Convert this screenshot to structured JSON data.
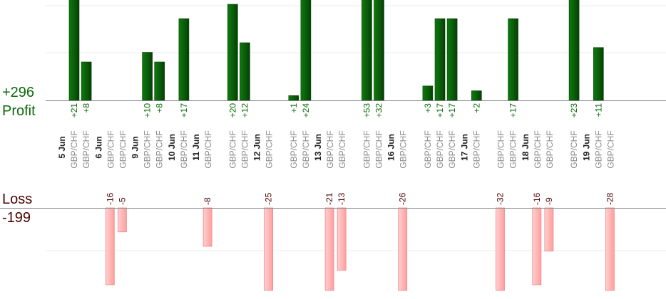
{
  "summary": {
    "profit_total": "+296",
    "profit_label": "Profit",
    "loss_label": "Loss",
    "loss_total": "-199"
  },
  "colors": {
    "profit_bar": "#0a5c0a",
    "profit_text": "#0a6a0a",
    "loss_bar": "#ffb3b3",
    "loss_bar_border": "#ee8a8a",
    "loss_text": "#4a0000",
    "axis": "#888888",
    "grid": "#eeeeee",
    "date_text": "#222222",
    "symbol_text": "#888888"
  },
  "chart_data": {
    "type": "bar",
    "title": "",
    "grid": true,
    "days": [
      {
        "date": "5 Jun",
        "trades": [
          {
            "symbol": "GBP/CHF",
            "value": 21,
            "label": "+21"
          },
          {
            "symbol": "GBP/CHF",
            "value": 8,
            "label": "+8"
          }
        ]
      },
      {
        "date": "6 Jun",
        "trades": [
          {
            "symbol": "GBP/CHF",
            "value": -16,
            "label": "-16"
          },
          {
            "symbol": "GBP/CHF",
            "value": -5,
            "label": "-5"
          }
        ]
      },
      {
        "date": "9 Jun",
        "trades": [
          {
            "symbol": "GBP/CHF",
            "value": 10,
            "label": "+10"
          },
          {
            "symbol": "GBP/CHF",
            "value": 8,
            "label": "+8"
          }
        ]
      },
      {
        "date": "10 Jun",
        "trades": [
          {
            "symbol": "GBP/CHF",
            "value": 17,
            "label": "+17"
          }
        ]
      },
      {
        "date": "11 Jun",
        "trades": [
          {
            "symbol": "GBP/CHF",
            "value": -8,
            "label": "-8"
          }
        ]
      },
      {
        "date": "",
        "trades": [
          {
            "symbol": "GBP/CHF",
            "value": 20,
            "label": "+20"
          },
          {
            "symbol": "GBP/CHF",
            "value": 12,
            "label": "+12"
          }
        ]
      },
      {
        "date": "12 Jun",
        "trades": [
          {
            "symbol": "GBP/CHF",
            "value": -25,
            "label": "-25"
          }
        ]
      },
      {
        "date": "",
        "trades": [
          {
            "symbol": "GBP/CHF",
            "value": 1,
            "label": "+1"
          },
          {
            "symbol": "GBP/CHF",
            "value": 24,
            "label": "+24"
          }
        ]
      },
      {
        "date": "13 Jun",
        "trades": [
          {
            "symbol": "GBP/CHF",
            "value": -21,
            "label": "-21"
          },
          {
            "symbol": "GBP/CHF",
            "value": -13,
            "label": "-13"
          }
        ]
      },
      {
        "date": "",
        "trades": [
          {
            "symbol": "GBP/CHF",
            "value": 53,
            "label": "+53"
          },
          {
            "symbol": "GBP/CHF",
            "value": 32,
            "label": "+32"
          }
        ]
      },
      {
        "date": "16 Jun",
        "trades": [
          {
            "symbol": "GBP/CHF",
            "value": -26,
            "label": "-26"
          }
        ]
      },
      {
        "date": "",
        "trades": [
          {
            "symbol": "GBP/CHF",
            "value": 3,
            "label": "+3"
          },
          {
            "symbol": "GBP/CHF",
            "value": 17,
            "label": "+17"
          },
          {
            "symbol": "GBP/CHF",
            "value": 17,
            "label": "+17"
          }
        ]
      },
      {
        "date": "17 Jun",
        "trades": [
          {
            "symbol": "GBP/CHF",
            "value": 2,
            "label": "+2"
          }
        ]
      },
      {
        "date": "",
        "trades": [
          {
            "symbol": "GBP/CHF",
            "value": -32,
            "label": "-32"
          },
          {
            "symbol": "GBP/CHF",
            "value": 17,
            "label": "+17"
          }
        ]
      },
      {
        "date": "18 Jun",
        "trades": [
          {
            "symbol": "GBP/CHF",
            "value": -16,
            "label": "-16"
          },
          {
            "symbol": "GBP/CHF",
            "value": -9,
            "label": "-9"
          }
        ]
      },
      {
        "date": "",
        "trades": [
          {
            "symbol": "GBP/CHF",
            "value": 23,
            "label": "+23"
          }
        ]
      },
      {
        "date": "19 Jun",
        "trades": [
          {
            "symbol": "GBP/CHF",
            "value": 11,
            "label": "+11"
          },
          {
            "symbol": "GBP/CHF",
            "value": -28,
            "label": "-28"
          }
        ]
      }
    ]
  }
}
